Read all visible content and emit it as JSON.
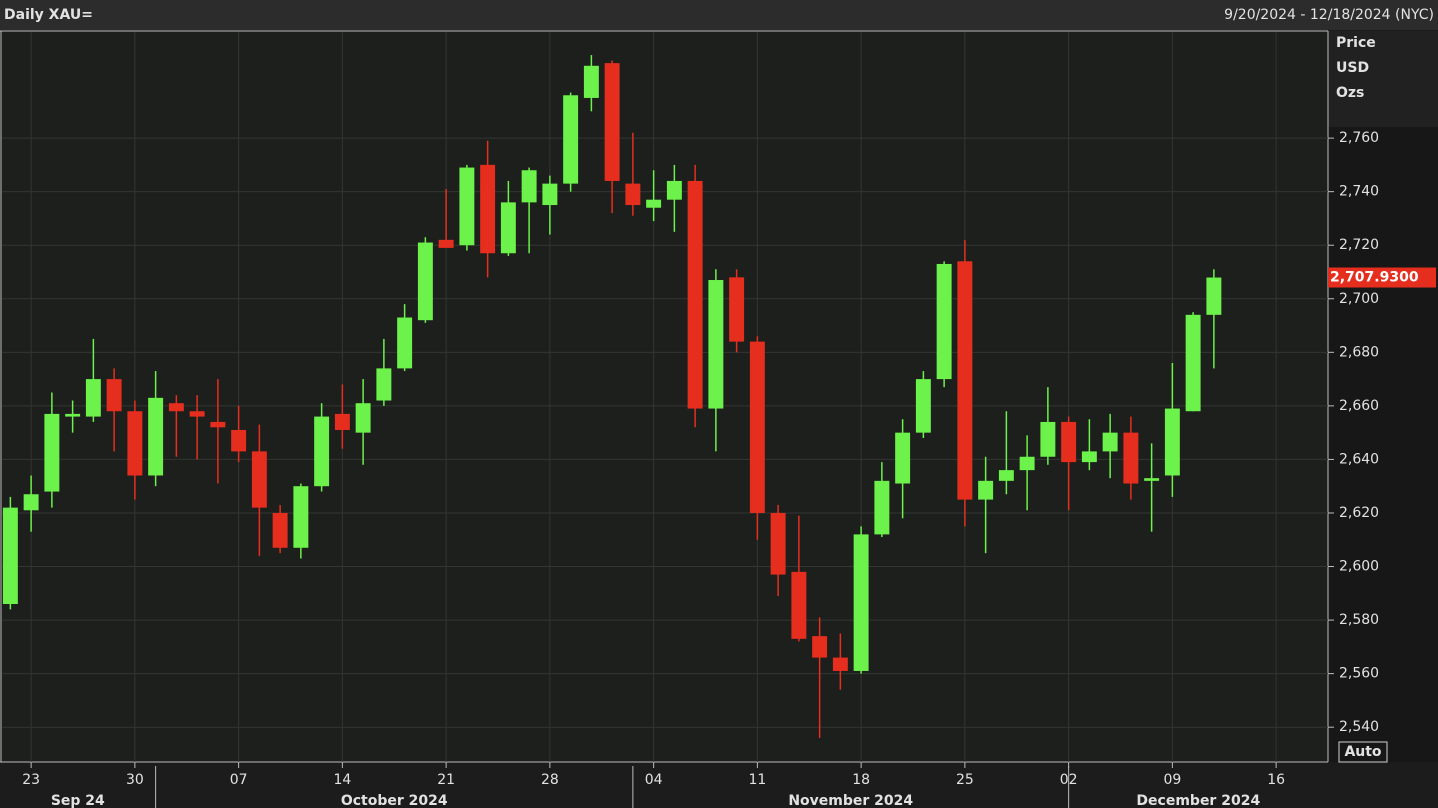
{
  "chart_data": {
    "type": "candlestick",
    "title": "Daily XAU=",
    "date_range": "9/20/2024 - 12/18/2024 (NYC)",
    "y_axis_label": [
      "Price",
      "USD",
      "Ozs"
    ],
    "auto_button": "Auto",
    "x": [
      "2024-09-20",
      "2024-09-23",
      "2024-09-24",
      "2024-09-25",
      "2024-09-26",
      "2024-09-27",
      "2024-09-30",
      "2024-10-01",
      "2024-10-02",
      "2024-10-03",
      "2024-10-04",
      "2024-10-07",
      "2024-10-08",
      "2024-10-09",
      "2024-10-10",
      "2024-10-11",
      "2024-10-14",
      "2024-10-15",
      "2024-10-16",
      "2024-10-17",
      "2024-10-18",
      "2024-10-21",
      "2024-10-22",
      "2024-10-23",
      "2024-10-24",
      "2024-10-25",
      "2024-10-28",
      "2024-10-29",
      "2024-10-30",
      "2024-10-31",
      "2024-11-01",
      "2024-11-04",
      "2024-11-05",
      "2024-11-06",
      "2024-11-07",
      "2024-11-08",
      "2024-11-11",
      "2024-11-12",
      "2024-11-13",
      "2024-11-14",
      "2024-11-15",
      "2024-11-18",
      "2024-11-19",
      "2024-11-20",
      "2024-11-21",
      "2024-11-22",
      "2024-11-25",
      "2024-11-26",
      "2024-11-27",
      "2024-11-28",
      "2024-11-29",
      "2024-12-02",
      "2024-12-03",
      "2024-12-04",
      "2024-12-05",
      "2024-12-06",
      "2024-12-09",
      "2024-12-10",
      "2024-12-11"
    ],
    "open": [
      2586,
      2621,
      2628,
      2656,
      2656,
      2670,
      2658,
      2634,
      2661,
      2658,
      2654,
      2651,
      2643,
      2620,
      2607,
      2630,
      2657,
      2650,
      2662,
      2674,
      2692,
      2722,
      2720,
      2750,
      2717,
      2736,
      2735,
      2743,
      2775,
      2788,
      2743,
      2734,
      2737,
      2744,
      2659,
      2708,
      2684,
      2620,
      2598,
      2574,
      2566,
      2561,
      2612,
      2631,
      2650,
      2670,
      2714,
      2625,
      2632,
      2636,
      2641,
      2654,
      2639,
      2643,
      2650,
      2632,
      2634,
      2658,
      2694
    ],
    "high": [
      2626,
      2634,
      2665,
      2662,
      2685,
      2674,
      2662,
      2673,
      2664,
      2664,
      2670,
      2660,
      2653,
      2623,
      2631,
      2661,
      2668,
      2670,
      2685,
      2698,
      2723,
      2741,
      2750,
      2759,
      2744,
      2749,
      2746,
      2777,
      2791,
      2789,
      2762,
      2748,
      2750,
      2750,
      2711,
      2711,
      2686,
      2623,
      2619,
      2581,
      2575,
      2615,
      2639,
      2655,
      2673,
      2714,
      2722,
      2641,
      2658,
      2649,
      2667,
      2656,
      2655,
      2657,
      2656,
      2646,
      2676,
      2695,
      2711
    ],
    "low": [
      2584,
      2613,
      2622,
      2650,
      2654,
      2643,
      2625,
      2630,
      2641,
      2640,
      2631,
      2639,
      2604,
      2605,
      2603,
      2628,
      2644,
      2638,
      2660,
      2673,
      2691,
      2719,
      2718,
      2708,
      2716,
      2717,
      2724,
      2740,
      2770,
      2732,
      2731,
      2729,
      2725,
      2652,
      2643,
      2680,
      2610,
      2589,
      2572,
      2536,
      2554,
      2560,
      2611,
      2618,
      2648,
      2667,
      2615,
      2605,
      2627,
      2621,
      2638,
      2621,
      2636,
      2633,
      2625,
      2613,
      2626,
      2658,
      2674
    ],
    "close": [
      2622,
      2627,
      2657,
      2657,
      2670,
      2658,
      2634,
      2663,
      2658,
      2656,
      2652,
      2643,
      2622,
      2607,
      2630,
      2656,
      2651,
      2661,
      2674,
      2693,
      2721,
      2719,
      2749,
      2717,
      2736,
      2748,
      2743,
      2776,
      2787,
      2744,
      2735,
      2737,
      2744,
      2659,
      2707,
      2684,
      2620,
      2597,
      2573,
      2566,
      2561,
      2612,
      2632,
      2650,
      2670,
      2713,
      2625,
      2632,
      2636,
      2641,
      2654,
      2639,
      2643,
      2650,
      2631,
      2633,
      2659,
      2694,
      2707.93
    ],
    "up_color": "#6cf24a",
    "down_color": "#e62e1e",
    "last_price": {
      "value": 2707.93,
      "label": "2,707.9300"
    },
    "xlim": [
      "2024-09-20",
      "2024-12-18"
    ],
    "xticks": [
      {
        "value": "2024-09-23",
        "label": "23"
      },
      {
        "value": "2024-09-30",
        "label": "30"
      },
      {
        "value": "2024-10-07",
        "label": "07"
      },
      {
        "value": "2024-10-14",
        "label": "14"
      },
      {
        "value": "2024-10-21",
        "label": "21"
      },
      {
        "value": "2024-10-28",
        "label": "28"
      },
      {
        "value": "2024-11-04",
        "label": "04"
      },
      {
        "value": "2024-11-11",
        "label": "11"
      },
      {
        "value": "2024-11-18",
        "label": "18"
      },
      {
        "value": "2024-11-25",
        "label": "25"
      },
      {
        "value": "2024-12-02",
        "label": "02"
      },
      {
        "value": "2024-12-09",
        "label": "09"
      },
      {
        "value": "2024-12-16",
        "label": "16"
      }
    ],
    "month_labels": [
      {
        "value": "2024-09",
        "label": "Sep 24"
      },
      {
        "value": "2024-10",
        "label": "October 2024"
      },
      {
        "value": "2024-11",
        "label": "November 2024"
      },
      {
        "value": "2024-12",
        "label": "December 2024"
      }
    ],
    "ylim": [
      2527,
      2800
    ],
    "yticks": [
      {
        "value": 2540,
        "label": "2,540"
      },
      {
        "value": 2560,
        "label": "2,560"
      },
      {
        "value": 2580,
        "label": "2,580"
      },
      {
        "value": 2600,
        "label": "2,600"
      },
      {
        "value": 2620,
        "label": "2,620"
      },
      {
        "value": 2640,
        "label": "2,640"
      },
      {
        "value": 2660,
        "label": "2,660"
      },
      {
        "value": 2680,
        "label": "2,680"
      },
      {
        "value": 2700,
        "label": "2,700"
      },
      {
        "value": 2720,
        "label": "2,720"
      },
      {
        "value": 2740,
        "label": "2,740"
      },
      {
        "value": 2760,
        "label": "2,760"
      }
    ],
    "grid": true
  }
}
